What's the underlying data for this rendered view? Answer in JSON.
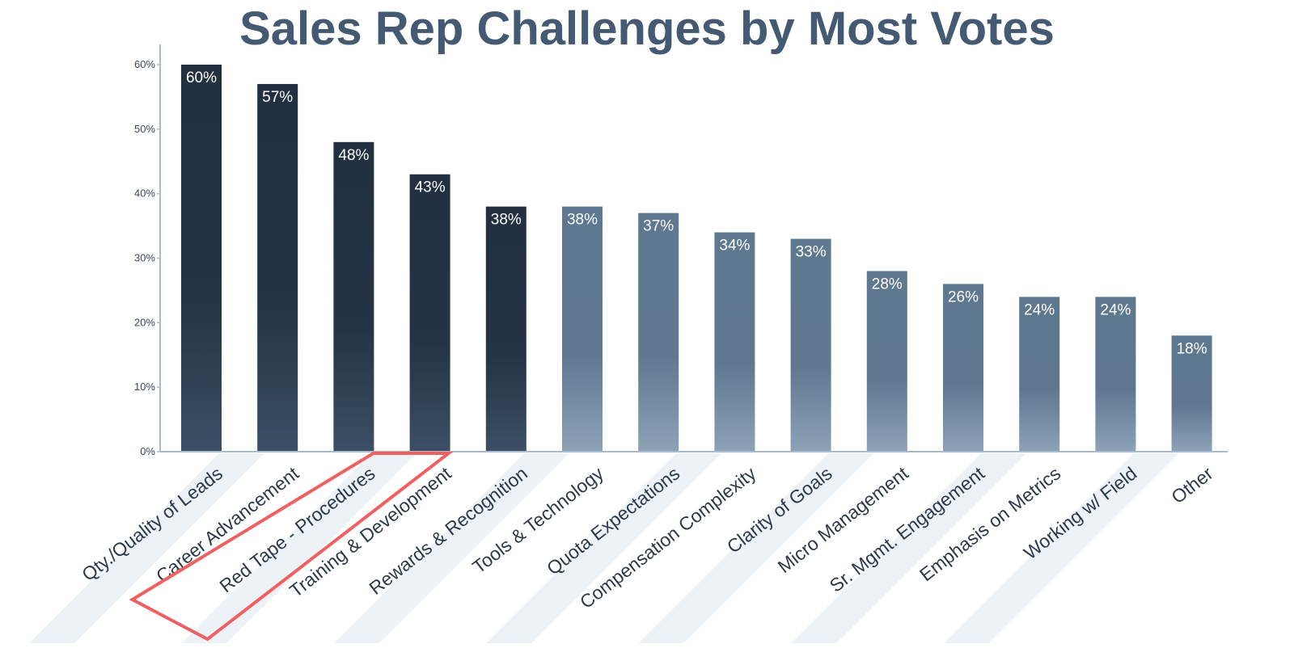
{
  "chart_data": {
    "type": "bar",
    "title": "Sales Rep Challenges by Most Votes",
    "xlabel": "",
    "ylabel": "",
    "ylim": [
      0,
      60
    ],
    "yticks": [
      "0%",
      "10%",
      "20%",
      "30%",
      "40%",
      "50%",
      "60%"
    ],
    "categories": [
      "Qty./Quality of Leads",
      "Career Advancement",
      "Red Tape - Procedures",
      "Training & Development",
      "Rewards & Recognition",
      "Tools & Technology",
      "Quota Expectations",
      "Compensation Complexity",
      "Clarity of Goals",
      "Micro Management",
      "Sr. Mgmt. Engagement",
      "Emphasis on Metrics",
      "Working w/ Field",
      "Other"
    ],
    "values": [
      60,
      57,
      48,
      43,
      38,
      38,
      37,
      34,
      33,
      28,
      26,
      24,
      24,
      18
    ],
    "value_labels": [
      "60%",
      "57%",
      "48%",
      "43%",
      "38%",
      "38%",
      "37%",
      "34%",
      "33%",
      "28%",
      "26%",
      "24%",
      "24%",
      "18%"
    ],
    "top_group_count": 5,
    "highlighted_category": "Training & Development",
    "grid": false,
    "legend": "none",
    "colors": {
      "title": "#445a72",
      "dark_bar_top": "#223041",
      "dark_bar_bottom": "#3c4f66",
      "light_bar_top": "#5e7890",
      "light_bar_bottom": "#8ca2b7",
      "axis": "#a9bccd",
      "highlight_box": "#f06060",
      "label_band": "#dfe7f0"
    }
  }
}
